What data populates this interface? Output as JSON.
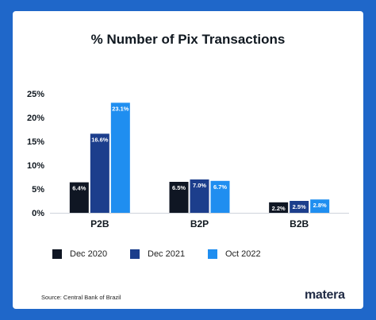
{
  "chart_data": {
    "type": "bar",
    "title": "% Number of Pix Transactions",
    "categories": [
      "P2B",
      "B2P",
      "B2B"
    ],
    "series": [
      {
        "name": "Dec 2020",
        "values": [
          6.4,
          6.5,
          2.2
        ],
        "labels": [
          "6.4%",
          "6.5%",
          "2.2%"
        ],
        "color": "#0f1623"
      },
      {
        "name": "Dec 2021",
        "values": [
          16.6,
          7.0,
          2.5
        ],
        "labels": [
          "16.6%",
          "7.0%",
          "2.5%"
        ],
        "color": "#1c3e8c"
      },
      {
        "name": "Oct 2022",
        "values": [
          23.1,
          6.7,
          2.8
        ],
        "labels": [
          "23.1%",
          "6.7%",
          "2.8%"
        ],
        "color": "#1f8ef0"
      }
    ],
    "ylim": [
      0,
      25
    ],
    "yticks": [
      0,
      5,
      10,
      15,
      20,
      25
    ],
    "ytick_labels": [
      "0%",
      "5%",
      "10%",
      "15%",
      "20%",
      "25%"
    ],
    "grid": false,
    "legend": "bottom"
  },
  "footer": {
    "source": "Source: Central Bank of Brazil",
    "logo": "matera"
  },
  "colors": {
    "background": "#1f67c9",
    "card": "#ffffff"
  }
}
